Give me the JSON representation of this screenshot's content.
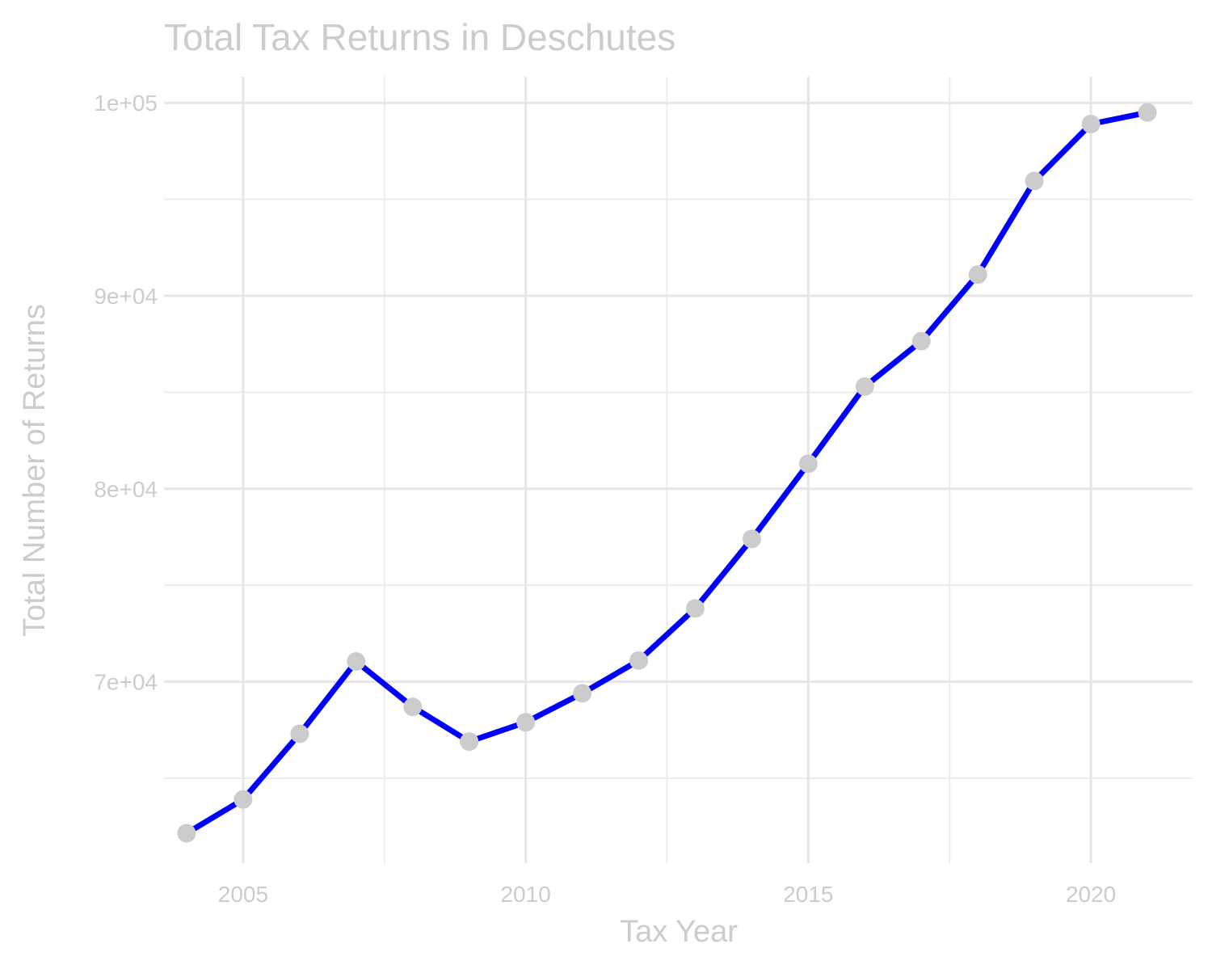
{
  "chart_data": {
    "type": "line",
    "title": "Total Tax Returns in Deschutes",
    "xlabel": "Tax Year",
    "ylabel": "Total Number of Returns",
    "x": [
      2004,
      2005,
      2006,
      2007,
      2008,
      2009,
      2010,
      2011,
      2012,
      2013,
      2014,
      2015,
      2016,
      2017,
      2018,
      2019,
      2020,
      2021
    ],
    "series": [
      {
        "values": [
          62150,
          63900,
          67300,
          71050,
          68700,
          66900,
          67900,
          69400,
          71100,
          73800,
          77400,
          81300,
          85300,
          87650,
          91100,
          95950,
          98900,
          99500
        ]
      }
    ],
    "xlim": [
      2003.6,
      2021.8
    ],
    "ylim": [
      60600,
      101350
    ],
    "x_ticks": [
      2005,
      2010,
      2015,
      2020
    ],
    "x_tick_labels": [
      "2005",
      "2010",
      "2015",
      "2020"
    ],
    "y_ticks": [
      70000,
      80000,
      90000,
      100000
    ],
    "y_tick_labels": [
      "7e+04",
      "8e+04",
      "9e+04",
      "1e+05"
    ],
    "x_minor_ticks": [
      2007.5,
      2012.5,
      2017.5
    ],
    "y_minor_ticks": [
      65000,
      75000,
      85000,
      95000
    ],
    "grid": true,
    "legend": "none",
    "line_color": "#0000ff",
    "point_color": "#cccccc",
    "text_color": "#cccccc",
    "grid_color": "#e6e6e6"
  }
}
